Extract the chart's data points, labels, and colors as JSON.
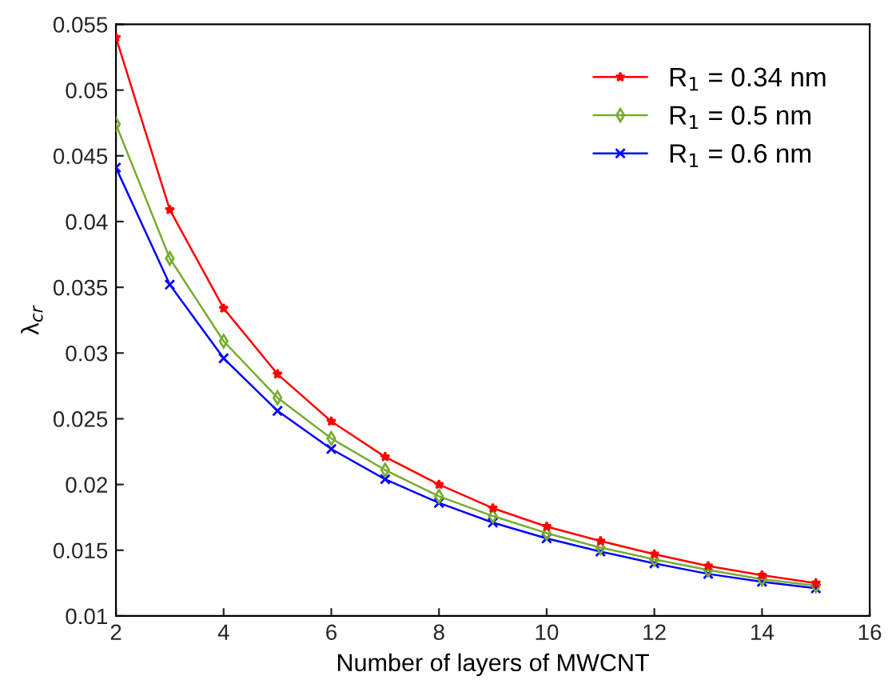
{
  "chart_data": {
    "type": "line",
    "xlabel": "Number of layers of MWCNT",
    "ylabel": "λ$_{cr}$",
    "x": [
      2,
      3,
      4,
      5,
      6,
      7,
      8,
      9,
      10,
      11,
      12,
      13,
      14,
      15
    ],
    "series": [
      {
        "name": "R$_{1}$ = 0.34 nm",
        "color": "#ff0000",
        "marker": "star",
        "values": [
          0.054,
          0.0409,
          0.0334,
          0.0284,
          0.0248,
          0.0221,
          0.02,
          0.0182,
          0.0168,
          0.0157,
          0.0147,
          0.0138,
          0.0131,
          0.0125
        ]
      },
      {
        "name": "R$_{1}$ = 0.5 nm",
        "color": "#77ac30",
        "marker": "diamond",
        "values": [
          0.0474,
          0.0372,
          0.0309,
          0.0266,
          0.0235,
          0.0211,
          0.0191,
          0.0176,
          0.0163,
          0.0152,
          0.0143,
          0.0135,
          0.0128,
          0.0123
        ]
      },
      {
        "name": "R$_{1}$ = 0.6 nm",
        "color": "#0000ff",
        "marker": "cross",
        "values": [
          0.0441,
          0.0352,
          0.0296,
          0.0256,
          0.0227,
          0.0204,
          0.0186,
          0.0171,
          0.0159,
          0.0149,
          0.014,
          0.0132,
          0.0126,
          0.0121
        ]
      }
    ],
    "xlim": [
      2,
      16
    ],
    "xticks": [
      2,
      4,
      6,
      8,
      10,
      12,
      14,
      16
    ],
    "ylim": [
      0.01,
      0.055
    ],
    "yticks": [
      0.01,
      0.015,
      0.02,
      0.025,
      0.03,
      0.035,
      0.04,
      0.045,
      0.05,
      0.055
    ],
    "grid": false,
    "legend": "top right",
    "line_style": "solid"
  }
}
